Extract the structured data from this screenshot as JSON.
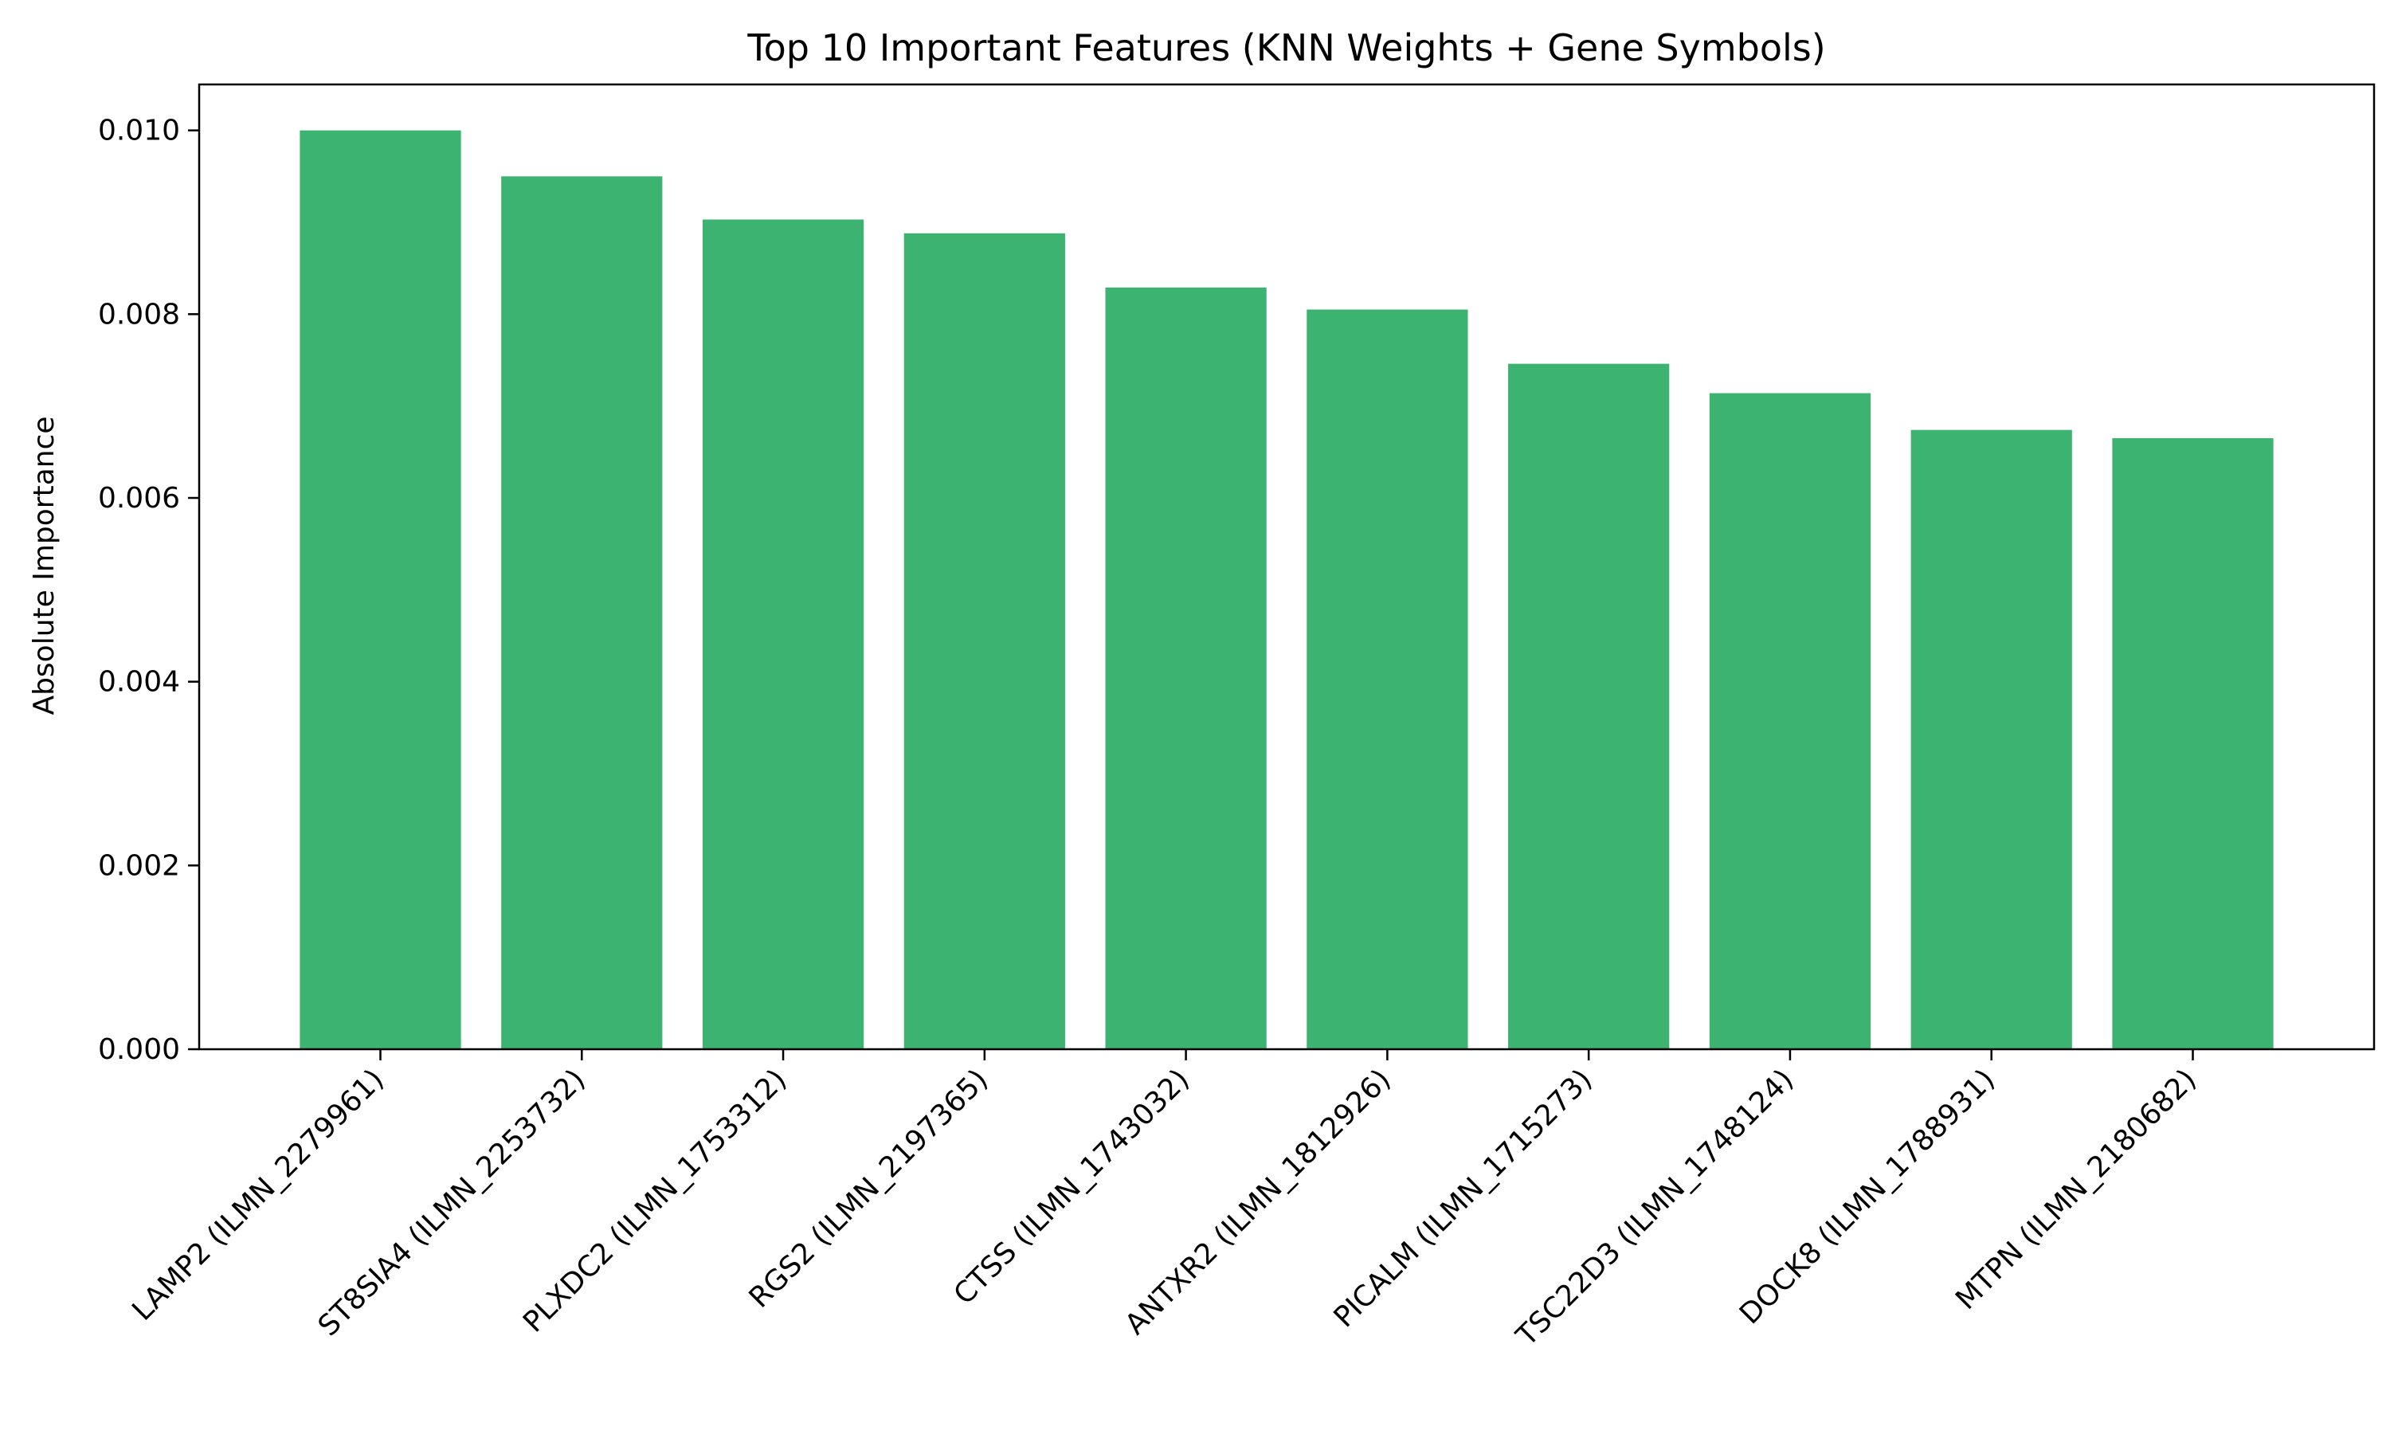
{
  "chart_data": {
    "type": "bar",
    "title": "Top 10 Important Features (KNN Weights + Gene Symbols)",
    "xlabel": "",
    "ylabel": "Absolute Importance",
    "ylim": [
      0,
      0.0105
    ],
    "yticks": [
      "0.000",
      "0.002",
      "0.004",
      "0.006",
      "0.008",
      "0.010"
    ],
    "ytick_values": [
      0,
      0.002,
      0.004,
      0.006,
      0.008,
      0.01
    ],
    "categories": [
      "LAMP2 (ILMN_2279961)",
      "ST8SIA4 (ILMN_2253732)",
      "PLXDC2 (ILMN_1753312)",
      "RGS2 (ILMN_2197365)",
      "CTSS (ILMN_1743032)",
      "ANTXR2 (ILMN_1812926)",
      "PICALM (ILMN_1715273)",
      "TSC22D3 (ILMN_1748124)",
      "DOCK8 (ILMN_1788931)",
      "MTPN (ILMN_2180682)"
    ],
    "values": [
      0.01,
      0.0095,
      0.00903,
      0.00888,
      0.00829,
      0.00805,
      0.00746,
      0.00714,
      0.00674,
      0.00665
    ],
    "bar_color": "#3cb371",
    "grid": false,
    "legend": "none"
  }
}
